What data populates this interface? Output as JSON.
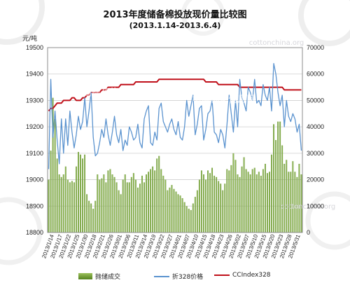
{
  "header": {
    "title": "2013年度储备棉投放现价量比较图",
    "subtitle": "(2013.1.14-2013.6.4)",
    "unit_label": "元/吨"
  },
  "watermarks": [
    "cottonchina.org",
    "中国棉花信息网"
  ],
  "colors": {
    "bar": "#6b9b2f",
    "price_line": "#5b93cf",
    "index_line": "#c0101a",
    "grid": "#cfcfcf",
    "plot_border": "#8c8c8c",
    "watermark": "#e9e9ec"
  },
  "legend": {
    "items": [
      {
        "key": "bar",
        "label": "抛储成交"
      },
      {
        "key": "price_line",
        "label": "折328价格"
      },
      {
        "key": "index_line",
        "label": "CCIndex328"
      }
    ]
  },
  "chart_data": {
    "type": "bar",
    "title": "2013年度储备棉投放现价量比较图",
    "subtitle": "(2013.1.14-2013.6.4)",
    "y_left": {
      "label": "元/吨",
      "range": [
        18800,
        19500
      ],
      "ticks": [
        18800,
        18900,
        19000,
        19100,
        19200,
        19300,
        19400,
        19500
      ]
    },
    "y_right": {
      "label": "",
      "range": [
        0,
        70000
      ],
      "ticks": [
        0,
        10000,
        20000,
        30000,
        40000,
        50000,
        60000,
        70000
      ]
    },
    "x_tick_labels": [
      "2013/1/14",
      "2013/1/17",
      "2013/1/22",
      "2013/1/25",
      "2013/1/30",
      "2013/2/18",
      "2013/2/21",
      "2013/2/26",
      "2013/3/01",
      "2013/3/06",
      "2013/3/11",
      "2013/3/14",
      "2013/3/19",
      "2013/3/22",
      "2013/3/27",
      "2013/4/01",
      "2013/4/07",
      "2013/4/10",
      "2013/4/15",
      "2013/4/18",
      "2013/4/23",
      "2013/4/26",
      "2013/5/02",
      "2013/5/07",
      "2013/5/10",
      "2013/5/15",
      "2013/5/20",
      "2013/5/23",
      "2013/5/28",
      "2013/5/31"
    ],
    "grid": true,
    "legend_position": "bottom",
    "series": [
      {
        "name": "抛储成交",
        "type": "bar",
        "axis": "right",
        "values": [
          20000,
          31000,
          51000,
          43000,
          28000,
          22000,
          21000,
          22000,
          25000,
          20000,
          19000,
          19500,
          19000,
          25000,
          30500,
          29500,
          28000,
          29500,
          14500,
          12000,
          11000,
          9000,
          12000,
          22000,
          20000,
          20500,
          22000,
          19000,
          23500,
          24000,
          22000,
          21000,
          19000,
          16000,
          14500,
          20000,
          22000,
          19000,
          19000,
          21000,
          22500,
          20000,
          17000,
          18500,
          21500,
          19000,
          22000,
          23000,
          24000,
          25000,
          23500,
          28000,
          29000,
          24000,
          21500,
          20000,
          16000,
          17000,
          18000,
          16500,
          15500,
          14500,
          14000,
          13000,
          11500,
          10000,
          9000,
          8500,
          11000,
          13500,
          16000,
          20000,
          23500,
          22000,
          20000,
          23500,
          22500,
          24500,
          21500,
          21000,
          19500,
          18500,
          16000,
          18500,
          24000,
          23500,
          25500,
          30000,
          27500,
          22000,
          21000,
          25000,
          28500,
          24000,
          23000,
          22000,
          24000,
          24500,
          22000,
          23000,
          21500,
          24000,
          26000,
          22500,
          23000,
          29500,
          41000,
          35000,
          42000,
          42000,
          33000,
          26000,
          27500,
          23000,
          23000,
          27000,
          23000,
          21000,
          26000,
          22000
        ]
      },
      {
        "name": "折328价格",
        "type": "line",
        "axis": "left",
        "values": [
          19040,
          19380,
          19160,
          19260,
          19150,
          19060,
          19230,
          19100,
          19230,
          19130,
          19260,
          19180,
          19120,
          19170,
          19240,
          19190,
          19220,
          19310,
          19200,
          19260,
          19330,
          19160,
          19090,
          19100,
          19140,
          19190,
          19160,
          19230,
          19170,
          19130,
          19180,
          19240,
          19170,
          19140,
          19190,
          19110,
          19150,
          19130,
          19200,
          19180,
          19150,
          19160,
          19210,
          19140,
          19120,
          19230,
          19260,
          19280,
          19140,
          19130,
          19180,
          19150,
          19270,
          19290,
          19220,
          19200,
          19180,
          19210,
          19230,
          19190,
          19170,
          19220,
          19160,
          19150,
          19200,
          19300,
          19240,
          19280,
          19320,
          19170,
          19210,
          19270,
          19280,
          19150,
          19190,
          19250,
          19260,
          19300,
          19180,
          19170,
          19140,
          19190,
          19170,
          19120,
          19210,
          19320,
          19250,
          19180,
          19300,
          19200,
          19380,
          19310,
          19290,
          19260,
          19350,
          19330,
          19300,
          19380,
          19290,
          19300,
          19280,
          19360,
          19320,
          19300,
          19350,
          19260,
          19440,
          19400,
          19330,
          19280,
          19320,
          19200,
          19300,
          19240,
          19220,
          19250,
          19230,
          19180,
          19210,
          19110
        ]
      },
      {
        "name": "CCIndex328",
        "type": "line",
        "axis": "left",
        "values": [
          19260,
          19270,
          19270,
          19280,
          19290,
          19290,
          19290,
          19300,
          19300,
          19300,
          19300,
          19310,
          19310,
          19300,
          19300,
          19300,
          19310,
          19310,
          19320,
          19320,
          19330,
          19330,
          19330,
          19330,
          19330,
          19340,
          19340,
          19340,
          19350,
          19350,
          19350,
          19350,
          19350,
          19350,
          19360,
          19360,
          19360,
          19360,
          19360,
          19360,
          19360,
          19370,
          19370,
          19370,
          19370,
          19370,
          19370,
          19370,
          19370,
          19370,
          19370,
          19370,
          19380,
          19380,
          19380,
          19380,
          19380,
          19380,
          19380,
          19380,
          19380,
          19380,
          19380,
          19380,
          19380,
          19380,
          19380,
          19380,
          19380,
          19380,
          19380,
          19380,
          19380,
          19380,
          19370,
          19370,
          19370,
          19370,
          19370,
          19370,
          19360,
          19360,
          19360,
          19360,
          19360,
          19360,
          19360,
          19360,
          19360,
          19360,
          19350,
          19350,
          19350,
          19350,
          19350,
          19350,
          19350,
          19350,
          19350,
          19350,
          19350,
          19350,
          19350,
          19350,
          19350,
          19350,
          19350,
          19350,
          19350,
          19350,
          19350,
          19340,
          19340,
          19340,
          19340,
          19340,
          19340,
          19340,
          19340,
          19340
        ]
      }
    ]
  }
}
